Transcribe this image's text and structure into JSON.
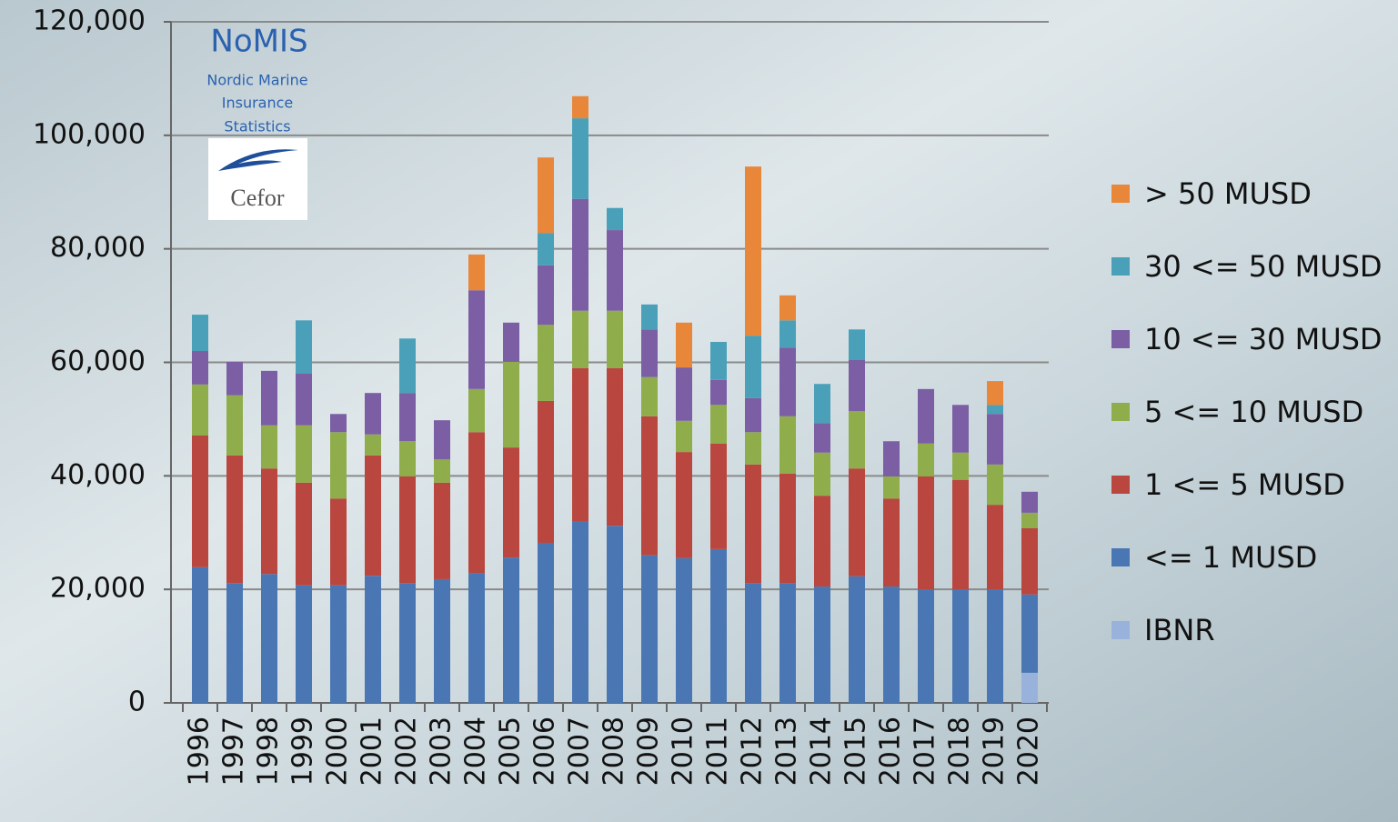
{
  "chart_data": {
    "type": "stacked_bar",
    "annotations": [
      "NoMIS",
      "Nordic Marine",
      "Insurance",
      "Statistics",
      "Cefor"
    ],
    "categories": [
      "1996",
      "1997",
      "1998",
      "1999",
      "2000",
      "2001",
      "2002",
      "2003",
      "2004",
      "2005",
      "2006",
      "2007",
      "2008",
      "2009",
      "2010",
      "2011",
      "2012",
      "2013",
      "2014",
      "2015",
      "2016",
      "2017",
      "2018",
      "2019",
      "2020"
    ],
    "series": [
      {
        "name": "IBNR",
        "color": "#98b2dc",
        "values": [
          null,
          null,
          null,
          null,
          null,
          null,
          null,
          null,
          null,
          null,
          null,
          null,
          null,
          null,
          null,
          null,
          null,
          null,
          null,
          null,
          null,
          null,
          null,
          null,
          5300
        ]
      },
      {
        "name": "<= 1 MUSD",
        "color": "#4a77b4",
        "values": [
          23900,
          21100,
          22700,
          20700,
          20700,
          22400,
          21100,
          21800,
          22900,
          25600,
          28200,
          31900,
          31200,
          26000,
          25500,
          27100,
          21100,
          21100,
          20500,
          22300,
          20500,
          20000,
          20000,
          20000,
          13800
        ]
      },
      {
        "name": "1 <= 5 MUSD",
        "color": "#b9463f",
        "values": [
          23200,
          22500,
          18600,
          18100,
          15300,
          21200,
          18800,
          17000,
          24800,
          19400,
          25000,
          27100,
          27800,
          24500,
          18700,
          18600,
          20900,
          19300,
          16000,
          19000,
          15500,
          19900,
          19300,
          14900,
          11700
        ]
      },
      {
        "name": "5 <= 10 MUSD",
        "color": "#8fad4a",
        "values": [
          9000,
          10600,
          7600,
          10100,
          11700,
          3700,
          6200,
          4100,
          7600,
          15100,
          13400,
          10100,
          10100,
          6900,
          5500,
          6800,
          5700,
          10100,
          7600,
          10100,
          3900,
          5800,
          4800,
          7100,
          2700
        ]
      },
      {
        "name": "10 <= 30 MUSD",
        "color": "#7b5ea3",
        "values": [
          5900,
          5900,
          9600,
          9100,
          3200,
          7300,
          8500,
          6900,
          17400,
          6900,
          10500,
          19700,
          14200,
          8400,
          9400,
          4400,
          6000,
          12100,
          5200,
          9000,
          6200,
          9600,
          8400,
          8900,
          3700
        ]
      },
      {
        "name": "30 <= 50 MUSD",
        "color": "#4aa0b8",
        "values": [
          6400,
          null,
          null,
          9400,
          null,
          null,
          9600,
          null,
          null,
          null,
          5700,
          14200,
          3900,
          4400,
          null,
          6700,
          11000,
          4800,
          6900,
          5400,
          null,
          null,
          null,
          1600,
          null
        ]
      },
      {
        "name": "> 50 MUSD",
        "color": "#e8863a",
        "values": [
          null,
          null,
          null,
          null,
          null,
          null,
          null,
          null,
          6300,
          null,
          13300,
          3900,
          null,
          null,
          7900,
          null,
          29800,
          4400,
          null,
          null,
          null,
          null,
          null,
          4200,
          null
        ]
      }
    ],
    "ylim": [
      0,
      120000
    ],
    "yticks": [
      0,
      {
        "value": 20000,
        "label": "20,000"
      },
      {
        "value": 40000,
        "label": "40,000"
      },
      {
        "value": 60000,
        "label": "60,000"
      },
      {
        "value": 80000,
        "label": "80,000"
      },
      {
        "value": 100000,
        "label": "100,000"
      },
      {
        "value": 120000,
        "label": "120,000"
      }
    ],
    "grid": true,
    "legend": "right"
  }
}
